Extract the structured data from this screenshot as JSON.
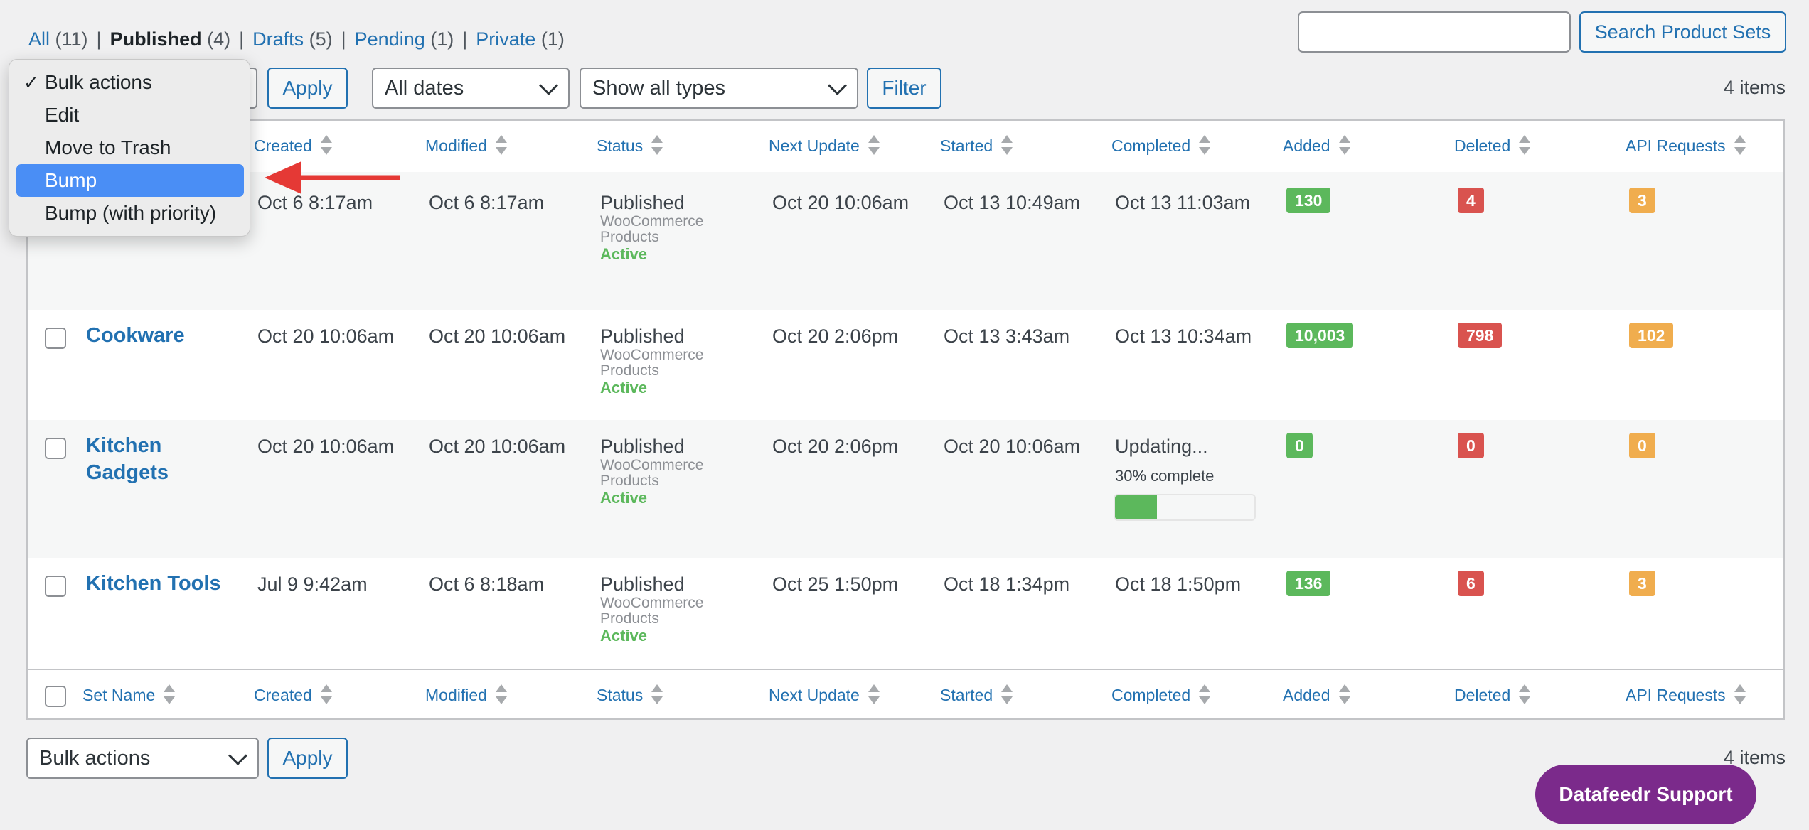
{
  "views": {
    "all": {
      "label": "All",
      "count": "(11)"
    },
    "published": {
      "label": "Published",
      "count": "(4)"
    },
    "drafts": {
      "label": "Drafts",
      "count": "(5)"
    },
    "pending": {
      "label": "Pending",
      "count": "(1)"
    },
    "private": {
      "label": "Private",
      "count": "(1)"
    }
  },
  "search": {
    "value": "",
    "button_label": "Search Product Sets"
  },
  "toolbar_top": {
    "apply_label": "Apply",
    "dates_selected": "All dates",
    "types_selected": "Show all types",
    "filter_label": "Filter",
    "items_count": "4 items"
  },
  "bulk_menu": {
    "options": [
      "Bulk actions",
      "Edit",
      "Move to Trash",
      "Bump",
      "Bump (with priority)"
    ],
    "checked": "Bulk actions",
    "highlighted": "Bump",
    "check_glyph": "✓"
  },
  "columns": {
    "set_name": "Set Name",
    "created": "Created",
    "modified": "Modified",
    "status": "Status",
    "next_update": "Next Update",
    "started": "Started",
    "completed": "Completed",
    "added": "Added",
    "deleted": "Deleted",
    "api_requests": "API Requests"
  },
  "rows": [
    {
      "name": "",
      "created": "Oct 6 8:17am",
      "modified": "Oct 6 8:17am",
      "status": "Published",
      "type_line1": "WooCommerce",
      "type_line2": "Products",
      "state": "Active",
      "next_update": "Oct 20 10:06am",
      "started": "Oct 13 10:49am",
      "completed": "Oct 13 11:03am",
      "added": "130",
      "deleted": "4",
      "api_requests": "3"
    },
    {
      "name": "Cookware",
      "created": "Oct 20 10:06am",
      "modified": "Oct 20 10:06am",
      "status": "Published",
      "type_line1": "WooCommerce",
      "type_line2": "Products",
      "state": "Active",
      "next_update": "Oct 20 2:06pm",
      "started": "Oct 13 3:43am",
      "completed": "Oct 13 10:34am",
      "added": "10,003",
      "deleted": "798",
      "api_requests": "102"
    },
    {
      "name": "Kitchen Gadgets",
      "created": "Oct 20 10:06am",
      "modified": "Oct 20 10:06am",
      "status": "Published",
      "type_line1": "WooCommerce",
      "type_line2": "Products",
      "state": "Active",
      "next_update": "Oct 20 2:06pm",
      "started": "Oct 20 10:06am",
      "completed": "Updating...",
      "progress_text": "30% complete",
      "progress_value": 0.3,
      "added": "0",
      "deleted": "0",
      "api_requests": "0"
    },
    {
      "name": "Kitchen Tools",
      "created": "Jul 9 9:42am",
      "modified": "Oct 6 8:18am",
      "status": "Published",
      "type_line1": "WooCommerce",
      "type_line2": "Products",
      "state": "Active",
      "next_update": "Oct 25 1:50pm",
      "started": "Oct 18 1:34pm",
      "completed": "Oct 18 1:50pm",
      "added": "136",
      "deleted": "6",
      "api_requests": "3"
    }
  ],
  "toolbar_bottom": {
    "bulk_selected": "Bulk actions",
    "apply_label": "Apply",
    "items_count": "4 items"
  },
  "support_button": "Datafeedr Support",
  "colors": {
    "link": "#2271b1",
    "badge_added": "#5cb85c",
    "badge_deleted": "#d9534f",
    "badge_api": "#f0ad4e",
    "menu_highlight": "#4a8ef5",
    "annotation_arrow": "#e53935",
    "support_bg": "#7b2a8b"
  }
}
